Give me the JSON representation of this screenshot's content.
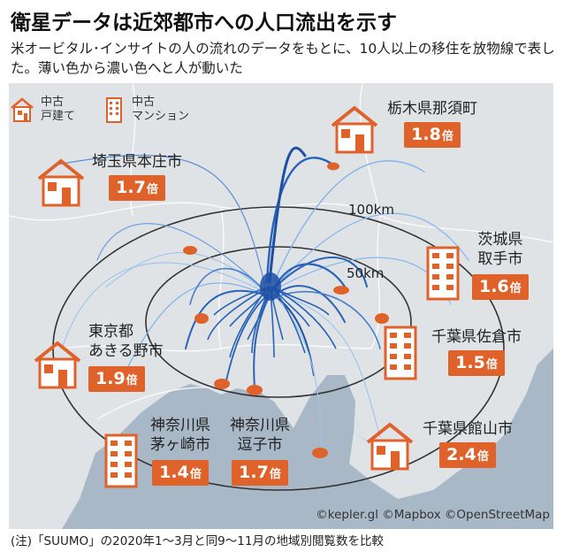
{
  "title": "衛星データは近郊都市への人口流出を示す",
  "subtitle": "米オービタル･インサイトの人の流れのデータをもとに、10人以上の移住を放物線で表した。薄い色から濃い色へと人が動いた",
  "legend": [
    {
      "icon": "house-icon",
      "label_line1": "中古",
      "label_line2": "戸建て"
    },
    {
      "icon": "condo-icon",
      "label_line1": "中古",
      "label_line2": "マンション"
    }
  ],
  "radius_labels": {
    "outer": "100km",
    "inner": "50km"
  },
  "callouts": [
    {
      "name": "tochigi-nasu",
      "place": "栃木県那須町",
      "value": "1.8",
      "unit": "倍",
      "icon": "house-icon"
    },
    {
      "name": "saitama-honjo",
      "place": "埼玉県本庄市",
      "value": "1.7",
      "unit": "倍",
      "icon": "house-icon"
    },
    {
      "name": "ibaraki-toride",
      "place_line1": "茨城県",
      "place_line2": "取手市",
      "value": "1.6",
      "unit": "倍",
      "icon": "condo-icon"
    },
    {
      "name": "chiba-sakura",
      "place": "千葉県佐倉市",
      "value": "1.5",
      "unit": "倍",
      "icon": "condo-icon"
    },
    {
      "name": "tokyo-akiruno",
      "place_line1": "東京都",
      "place_line2": "あきる野市",
      "value": "1.9",
      "unit": "倍",
      "icon": "house-icon"
    },
    {
      "name": "kanagawa-chigasaki",
      "place_line1": "神奈川県",
      "place_line2": "茅ヶ崎市",
      "value": "1.4",
      "unit": "倍",
      "icon": "condo-icon"
    },
    {
      "name": "kanagawa-zushi",
      "place_line1": "神奈川県",
      "place_line2": "逗子市",
      "value": "1.7",
      "unit": "倍",
      "icon": "condo-icon"
    },
    {
      "name": "chiba-tateyama",
      "place": "千葉県館山市",
      "value": "2.4",
      "unit": "倍",
      "icon": "house-icon"
    }
  ],
  "credit": "©kepler.gl ©Mapbox ©OpenStreetMap",
  "note": "(注)「SUUMO」の2020年1～3月と同9～11月の地域別閲覧数を比較",
  "colors": {
    "accent": "#e0622b",
    "flow": "#2a62b8",
    "land": "#dfe3e6",
    "sea": "#a9b8c7"
  }
}
